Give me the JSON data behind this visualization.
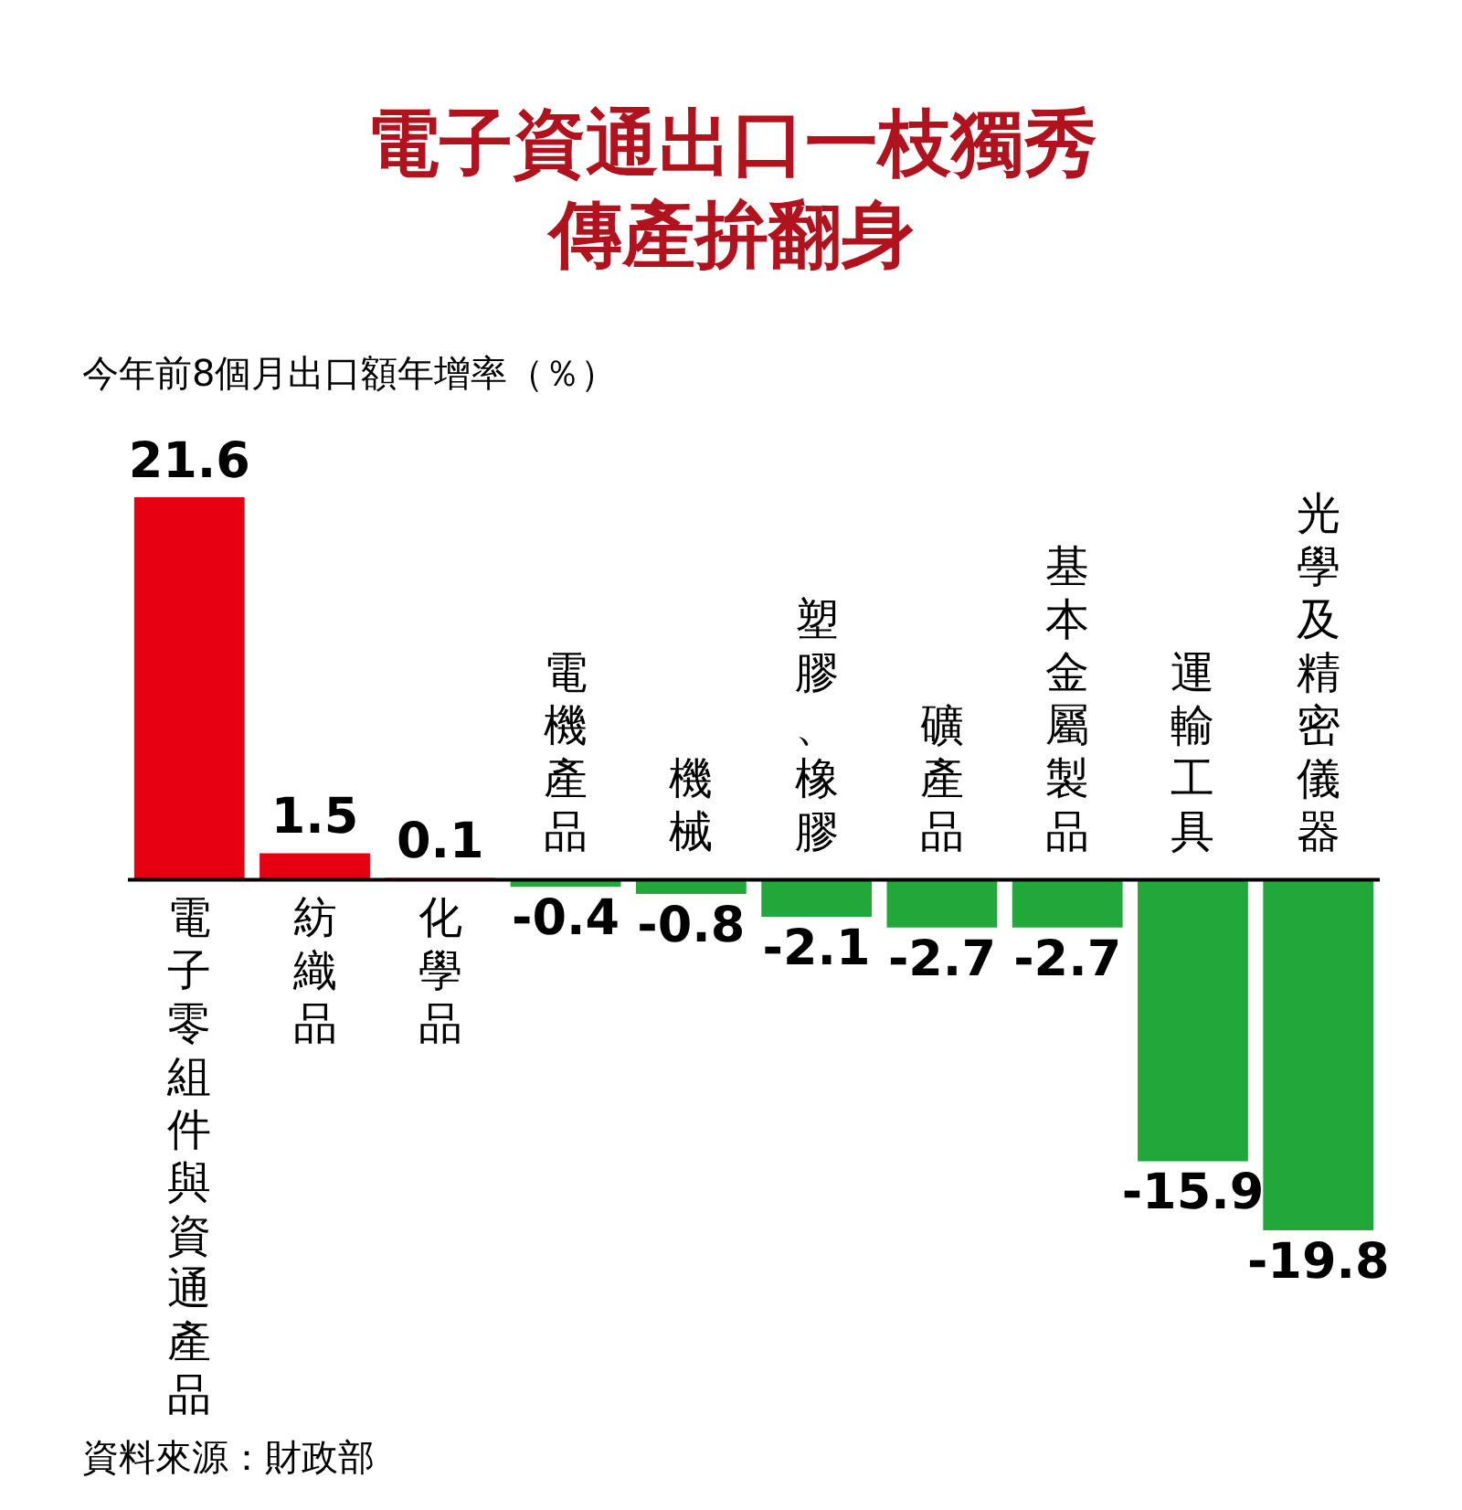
{
  "chart_data": {
    "type": "bar",
    "title": "電子資通出口一枝獨秀",
    "subtitle": "傳產拚翻身",
    "ylabel": "今年前8個月出口額年增率（％）",
    "categories": [
      "電子零組件與資通產品",
      "紡織品",
      "化學品",
      "電機產品",
      "機械",
      "塑膠、橡膠",
      "礦產品",
      "基本金屬製品",
      "運輸工具",
      "光學及精密儀器"
    ],
    "values": [
      21.6,
      1.5,
      0.1,
      -0.4,
      -0.8,
      -2.1,
      -2.7,
      -2.7,
      -15.9,
      -19.8
    ],
    "colors": [
      "#e60012",
      "#e60012",
      "#e60012",
      "#22a83a",
      "#22a83a",
      "#22a83a",
      "#22a83a",
      "#22a83a",
      "#22a83a",
      "#22a83a"
    ],
    "data_labels": true,
    "annotations": [
      "資料來源：財政部"
    ]
  }
}
